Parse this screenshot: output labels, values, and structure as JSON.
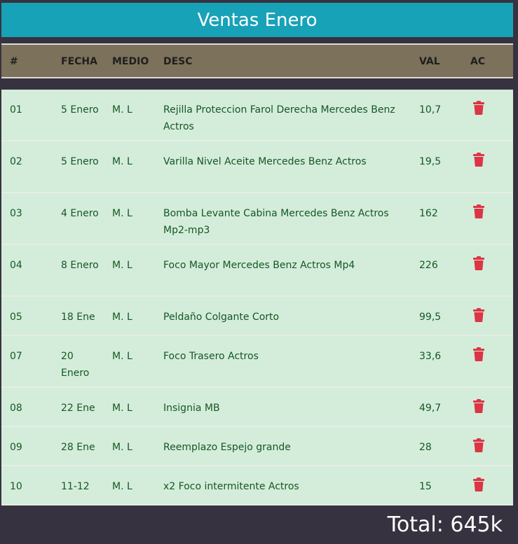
{
  "title": "Ventas Enero",
  "columns": [
    "#",
    "FECHA",
    "MEDIO",
    "DESC",
    "VAL",
    "AC"
  ],
  "rows": [
    {
      "num": "01",
      "date": "5 Enero",
      "medio": "M. L",
      "desc": "Rejilla Proteccion Farol Derecha Mercedes Benz Actros",
      "val": "10,7",
      "action_icon": "trash-icon"
    },
    {
      "num": "02",
      "date": "5 Enero",
      "medio": "M. L",
      "desc": "Varilla Nivel Aceite Mercedes Benz Actros",
      "val": "19,5",
      "action_icon": "trash-icon"
    },
    {
      "num": "03",
      "date": "4 Enero",
      "medio": "M. L",
      "desc": "Bomba Levante Cabina Mercedes Benz Actros Mp2-mp3",
      "val": "162",
      "action_icon": "trash-icon"
    },
    {
      "num": "04",
      "date": "8 Enero",
      "medio": "M. L",
      "desc": "Foco Mayor Mercedes Benz Actros Mp4",
      "val": "226",
      "action_icon": "trash-icon"
    },
    {
      "num": "05",
      "date": "18 Ene",
      "medio": "M. L",
      "desc": "Peldaño Colgante Corto",
      "val": "99,5",
      "action_icon": "trash-icon"
    },
    {
      "num": "07",
      "date": "20 Enero",
      "medio": "M. L",
      "desc": "Foco Trasero Actros",
      "val": "33,6",
      "action_icon": "trash-icon"
    },
    {
      "num": "08",
      "date": "22 Ene",
      "medio": "M. L",
      "desc": "Insignia MB",
      "val": "49,7",
      "action_icon": "trash-icon"
    },
    {
      "num": "09",
      "date": "28 Ene",
      "medio": "M. L",
      "desc": "Reemplazo Espejo grande",
      "val": "28",
      "action_icon": "trash-icon"
    },
    {
      "num": "10",
      "date": "11-12",
      "medio": "M. L",
      "desc": "x2 Foco intermitente Actros",
      "val": "15",
      "action_icon": "trash-icon"
    }
  ],
  "total": "Total: 645k",
  "colors": {
    "title_bg": "#17a2b8",
    "header_bg": "#7c715a",
    "row_bg": "#d4edda",
    "row_text": "#155724",
    "delete_icon": "#dc3545",
    "page_bg": "#37323f"
  }
}
